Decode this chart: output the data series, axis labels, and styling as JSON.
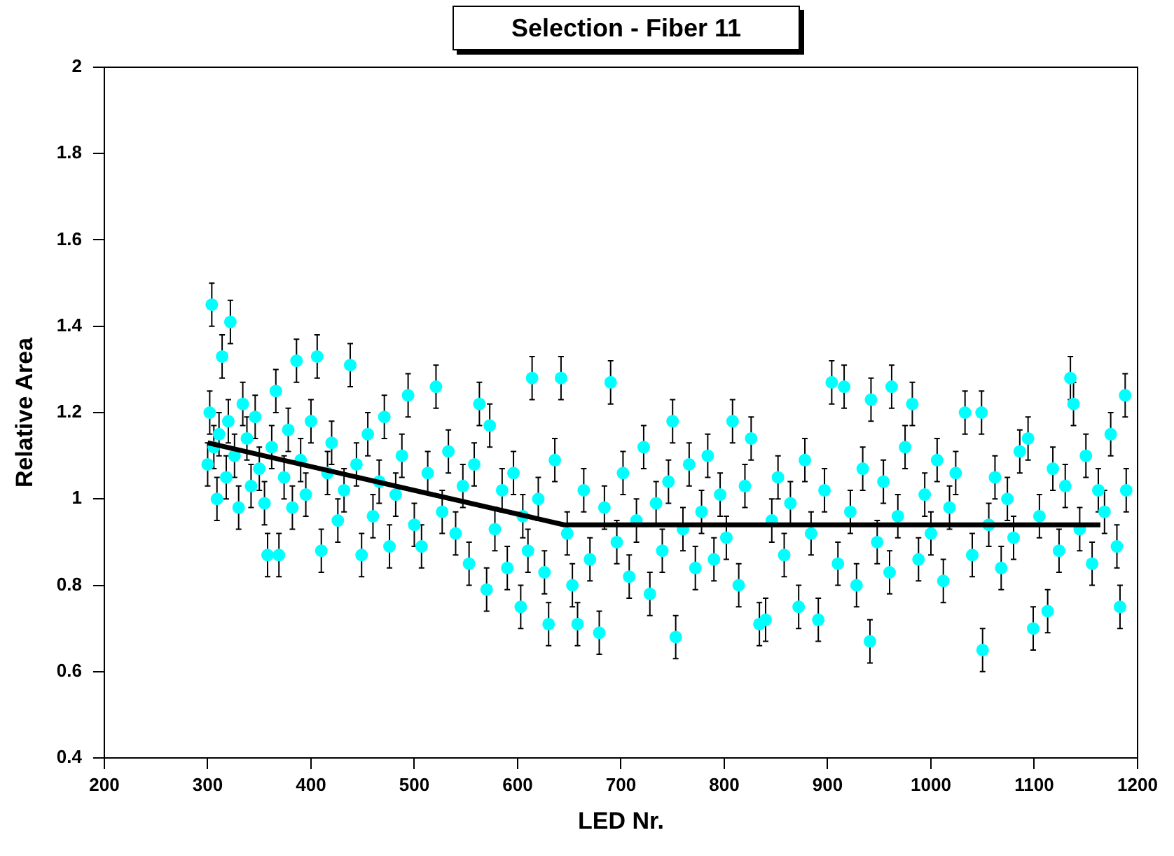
{
  "chart_data": {
    "type": "scatter",
    "title": "Selection - Fiber 11",
    "xlabel": "LED Nr.",
    "ylabel": "Relative Area",
    "xlim": [
      200,
      1200
    ],
    "xticks": [
      200,
      300,
      400,
      500,
      600,
      700,
      800,
      900,
      1000,
      1100,
      1200
    ],
    "ylim": [
      0.4,
      2
    ],
    "yticks": [
      0.4,
      0.6,
      0.8,
      1,
      1.2,
      1.4,
      1.6,
      1.8,
      2
    ],
    "marker": "circle",
    "series": [
      {
        "type": "scatter",
        "color": "#00ffff",
        "x": [
          300,
          302,
          304,
          306,
          309,
          311,
          314,
          318,
          320,
          322,
          326,
          330,
          334,
          338,
          342,
          346,
          350,
          355,
          358,
          362,
          366,
          369,
          374,
          378,
          382,
          386,
          390,
          395,
          400,
          406,
          410,
          416,
          420,
          426,
          432,
          438,
          444,
          449,
          455,
          460,
          466,
          471,
          476,
          482,
          488,
          494,
          500,
          507,
          513,
          521,
          527,
          533,
          540,
          547,
          553,
          558,
          563,
          570,
          573,
          578,
          585,
          590,
          596,
          603,
          605,
          610,
          614,
          620,
          626,
          630,
          636,
          642,
          648,
          653,
          658,
          664,
          670,
          679,
          684,
          690,
          696,
          702,
          708,
          715,
          722,
          728,
          734,
          740,
          746,
          750,
          753,
          760,
          766,
          772,
          778,
          784,
          790,
          796,
          802,
          808,
          814,
          820,
          826,
          834,
          840,
          846,
          852,
          858,
          864,
          872,
          878,
          884,
          891,
          897,
          904,
          910,
          916,
          922,
          928,
          934,
          941,
          942,
          948,
          954,
          960,
          962,
          968,
          975,
          982,
          988,
          994,
          1000,
          1006,
          1012,
          1018,
          1024,
          1033,
          1040,
          1049,
          1050,
          1056,
          1062,
          1068,
          1074,
          1080,
          1086,
          1094,
          1099,
          1105,
          1113,
          1118,
          1124,
          1130,
          1135,
          1138,
          1144,
          1150,
          1156,
          1162,
          1168,
          1174,
          1180,
          1183,
          1188,
          1189
        ],
        "values": [
          1.08,
          1.2,
          1.45,
          1.12,
          1.0,
          1.15,
          1.33,
          1.05,
          1.18,
          1.41,
          1.1,
          0.98,
          1.22,
          1.14,
          1.03,
          1.19,
          1.07,
          0.99,
          0.87,
          1.12,
          1.25,
          0.87,
          1.05,
          1.16,
          0.98,
          1.32,
          1.09,
          1.01,
          1.18,
          1.33,
          0.88,
          1.06,
          1.13,
          0.95,
          1.02,
          1.31,
          1.08,
          0.87,
          1.15,
          0.96,
          1.04,
          1.19,
          0.89,
          1.01,
          1.1,
          1.24,
          0.94,
          0.89,
          1.06,
          1.26,
          0.97,
          1.11,
          0.92,
          1.03,
          0.85,
          1.08,
          1.22,
          0.79,
          1.17,
          0.93,
          1.02,
          0.84,
          1.06,
          0.75,
          0.96,
          0.88,
          1.28,
          1.0,
          0.83,
          0.71,
          1.09,
          1.28,
          0.92,
          0.8,
          0.71,
          1.02,
          0.86,
          0.69,
          0.98,
          1.27,
          0.9,
          1.06,
          0.82,
          0.95,
          1.12,
          0.78,
          0.99,
          0.88,
          1.04,
          1.18,
          0.68,
          0.93,
          1.08,
          0.84,
          0.97,
          1.1,
          0.86,
          1.01,
          0.91,
          1.18,
          0.8,
          1.03,
          1.14,
          0.71,
          0.72,
          0.95,
          1.05,
          0.87,
          0.99,
          0.75,
          1.09,
          0.92,
          0.72,
          1.02,
          1.27,
          0.85,
          1.26,
          0.97,
          0.8,
          1.07,
          0.67,
          1.23,
          0.9,
          1.04,
          0.83,
          1.26,
          0.96,
          1.12,
          1.22,
          0.86,
          1.01,
          0.92,
          1.09,
          0.81,
          0.98,
          1.06,
          1.2,
          0.87,
          1.2,
          0.65,
          0.94,
          1.05,
          0.84,
          1.0,
          0.91,
          1.11,
          1.14,
          0.7,
          0.96,
          0.74,
          1.07,
          0.88,
          1.03,
          1.28,
          1.22,
          0.93,
          1.1,
          0.85,
          1.02,
          0.97,
          1.15,
          0.89,
          0.75,
          1.24,
          1.02
        ],
        "errors": [
          0.05,
          0.05,
          0.05,
          0.05,
          0.05,
          0.05,
          0.05,
          0.05,
          0.05,
          0.05,
          0.05,
          0.05,
          0.05,
          0.05,
          0.05,
          0.05,
          0.05,
          0.05,
          0.05,
          0.05,
          0.05,
          0.05,
          0.05,
          0.05,
          0.05,
          0.05,
          0.05,
          0.05,
          0.05,
          0.05,
          0.05,
          0.05,
          0.05,
          0.05,
          0.05,
          0.05,
          0.05,
          0.05,
          0.05,
          0.05,
          0.05,
          0.05,
          0.05,
          0.05,
          0.05,
          0.05,
          0.05,
          0.05,
          0.05,
          0.05,
          0.05,
          0.05,
          0.05,
          0.05,
          0.05,
          0.05,
          0.05,
          0.05,
          0.05,
          0.05,
          0.05,
          0.05,
          0.05,
          0.05,
          0.05,
          0.05,
          0.05,
          0.05,
          0.05,
          0.05,
          0.05,
          0.05,
          0.05,
          0.05,
          0.05,
          0.05,
          0.05,
          0.05,
          0.05,
          0.05,
          0.05,
          0.05,
          0.05,
          0.05,
          0.05,
          0.05,
          0.05,
          0.05,
          0.05,
          0.05,
          0.05,
          0.05,
          0.05,
          0.05,
          0.05,
          0.05,
          0.05,
          0.05,
          0.05,
          0.05,
          0.05,
          0.05,
          0.05,
          0.05,
          0.05,
          0.05,
          0.05,
          0.05,
          0.05,
          0.05,
          0.05,
          0.05,
          0.05,
          0.05,
          0.05,
          0.05,
          0.05,
          0.05,
          0.05,
          0.05,
          0.05,
          0.05,
          0.05,
          0.05,
          0.05,
          0.05,
          0.05,
          0.05,
          0.05,
          0.05,
          0.05,
          0.05,
          0.05,
          0.05,
          0.05,
          0.05,
          0.05,
          0.05,
          0.05,
          0.05,
          0.05,
          0.05,
          0.05,
          0.05,
          0.05,
          0.05,
          0.05,
          0.05,
          0.05,
          0.05,
          0.05,
          0.05,
          0.05,
          0.05,
          0.05,
          0.05,
          0.05,
          0.05,
          0.05,
          0.05,
          0.05,
          0.05,
          0.05,
          0.05,
          0.05
        ]
      },
      {
        "type": "line",
        "color": "#000000",
        "line_style": "solid",
        "marker": "none",
        "x": [
          300,
          645,
          1164
        ],
        "values": [
          1.13,
          0.94,
          0.94
        ]
      }
    ]
  }
}
